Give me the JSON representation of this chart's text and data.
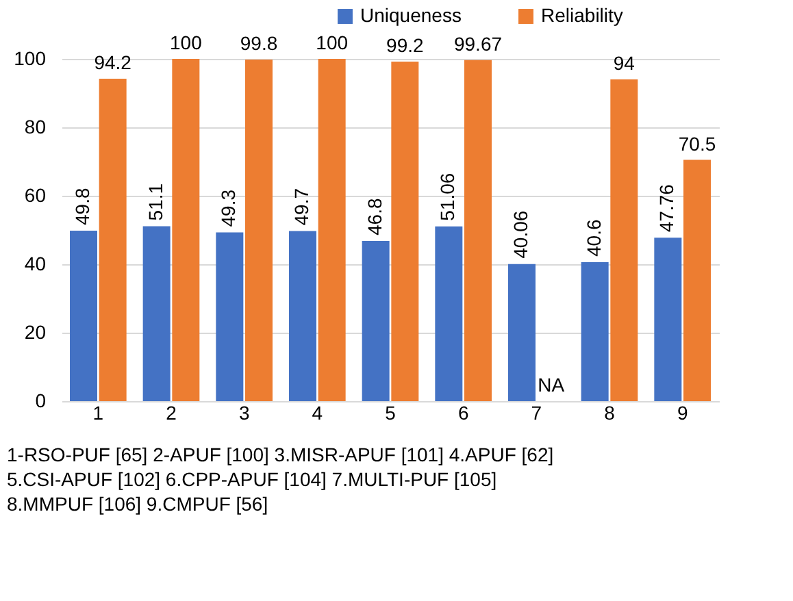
{
  "chart_data": {
    "type": "bar",
    "categories": [
      "1",
      "2",
      "3",
      "4",
      "5",
      "6",
      "7",
      "8",
      "9"
    ],
    "series": [
      {
        "name": "Uniqueness",
        "color": "#4472c4",
        "values": [
          49.8,
          51.1,
          49.3,
          49.7,
          46.8,
          51.06,
          40.06,
          40.6,
          47.76
        ],
        "value_labels": [
          "49.8",
          "51.1",
          "49.3",
          "49.7",
          "46.8",
          "51.06",
          "40.06",
          "40.6",
          "47.76"
        ]
      },
      {
        "name": "Reliability",
        "color": "#ed7d31",
        "values": [
          94.2,
          100,
          99.8,
          100,
          99.2,
          99.67,
          null,
          94,
          70.5
        ],
        "value_labels": [
          "94.2",
          "100",
          "99.8",
          "100",
          "99.2",
          "99.67",
          "NA",
          "94",
          "70.5"
        ]
      }
    ],
    "ylim": [
      0,
      100
    ],
    "yticks": [
      0,
      20,
      40,
      60,
      80,
      100
    ],
    "grid": "y",
    "legend": "top right",
    "annotations": [
      "1-RSO-PUF [65]  2-APUF [100] 3.MISR-APUF [101]  4.APUF [62]",
      "5.CSI-APUF [102] 6.CPP-APUF [104]  7.MULTI-PUF [105]",
      "8.MMPUF [106]  9.CMPUF [56]"
    ]
  }
}
